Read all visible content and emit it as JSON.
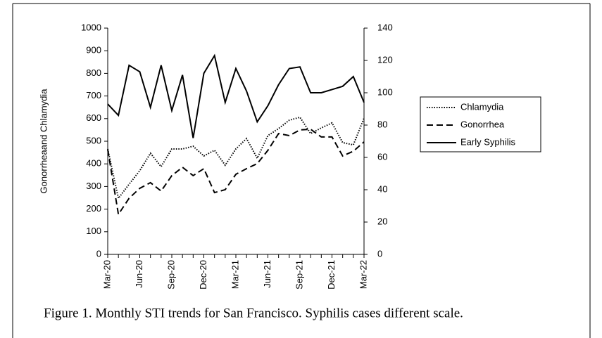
{
  "chart_data": {
    "type": "line",
    "y_label": "Gonorrheaand Chlamydia",
    "caption": "Figure 1. Monthly STI trends for San Francisco. Syphilis cases different scale.",
    "categories": [
      "Mar-20",
      null,
      null,
      "Jun-20",
      null,
      null,
      "Sep-20",
      null,
      null,
      "Dec-20",
      null,
      null,
      "Mar-21",
      null,
      null,
      "Jun-21",
      null,
      null,
      "Sep-21",
      null,
      null,
      "Dec-21",
      null,
      null,
      "Mar-22"
    ],
    "series": [
      {
        "name": "Chlamydia",
        "color": "#000000",
        "dash": "dotted",
        "values": [
          466,
          248,
          310,
          370,
          447,
          388,
          466,
          466,
          478,
          435,
          460,
          394,
          466,
          512,
          425,
          525,
          556,
          593,
          606,
          534,
          559,
          581,
          494,
          484,
          602
        ]
      },
      {
        "name": "Gonorrhea",
        "color": "#000000",
        "dash": "dashed",
        "values": [
          463,
          177,
          248,
          292,
          317,
          280,
          348,
          385,
          348,
          379,
          273,
          286,
          354,
          379,
          401,
          460,
          534,
          525,
          550,
          553,
          519,
          519,
          435,
          456,
          497
        ]
      },
      {
        "name": "Early Syphilis",
        "color": "#000000",
        "dash": "solid",
        "axis": "y2",
        "values": [
          93,
          86,
          117,
          113,
          91,
          117,
          89,
          111,
          72,
          112,
          123,
          94,
          115,
          101,
          82,
          92,
          105,
          115,
          116,
          100,
          100,
          102,
          104,
          110,
          94
        ]
      }
    ],
    "ylim": [
      0,
      1000
    ],
    "yticks": [
      0,
      100,
      200,
      300,
      400,
      500,
      600,
      700,
      800,
      900,
      1000
    ],
    "y2lim": [
      0,
      140
    ],
    "y2ticks": [
      0,
      20,
      40,
      60,
      80,
      100,
      120,
      140
    ],
    "legend": "right",
    "grid": false
  }
}
